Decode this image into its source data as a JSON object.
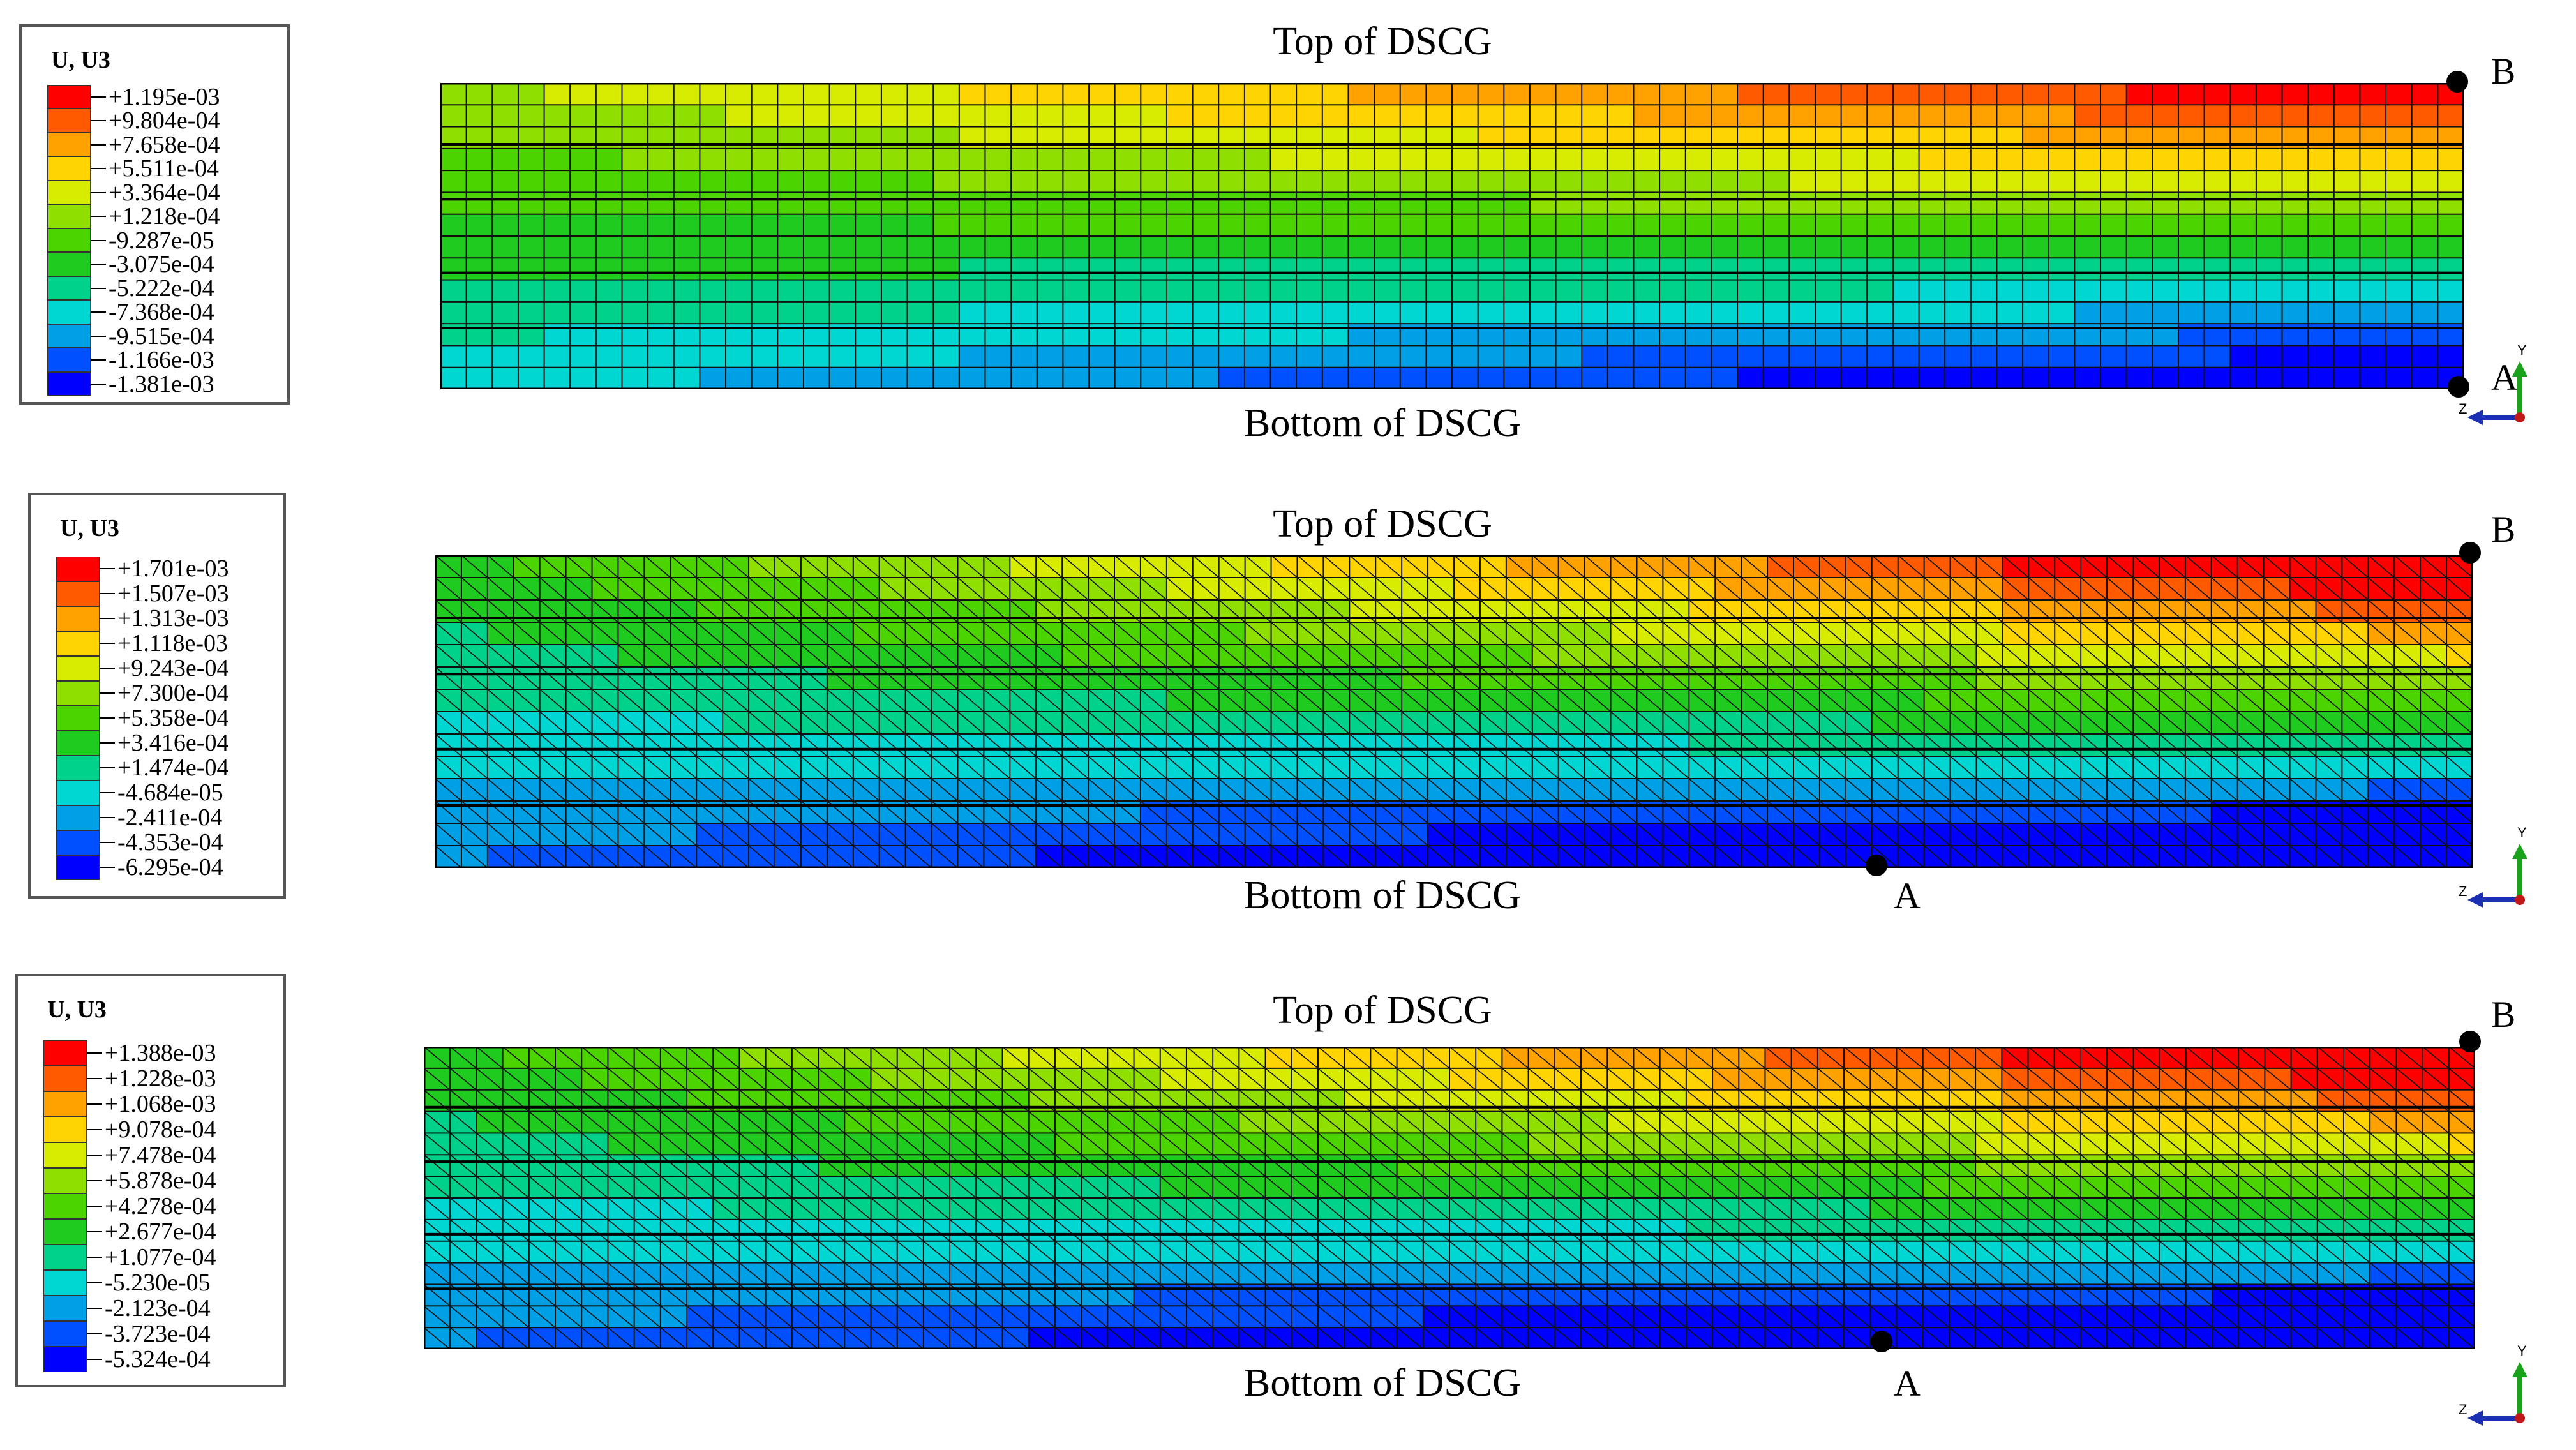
{
  "panels": [
    {
      "legend_title": "U, U3",
      "legend_values": [
        "+1.195e-03",
        "+9.804e-04",
        "+7.658e-04",
        "+5.511e-04",
        "+3.364e-04",
        "+1.218e-04",
        "-9.287e-05",
        "-3.075e-04",
        "-5.222e-04",
        "-7.368e-04",
        "-9.515e-04",
        "-1.166e-03",
        "-1.381e-03"
      ],
      "top_label": "Top of DSCG",
      "bottom_label": "Bottom of DSCG",
      "point_b": "B",
      "point_a": "A",
      "mesh": "quad"
    },
    {
      "legend_title": "U, U3",
      "legend_values": [
        "+1.701e-03",
        "+1.507e-03",
        "+1.313e-03",
        "+1.118e-03",
        "+9.243e-04",
        "+7.300e-04",
        "+5.358e-04",
        "+3.416e-04",
        "+1.474e-04",
        "-4.684e-05",
        "-2.411e-04",
        "-4.353e-04",
        "-6.295e-04"
      ],
      "top_label": "Top of DSCG",
      "bottom_label": "Bottom of DSCG",
      "point_b": "B",
      "point_a": "A",
      "mesh": "tri"
    },
    {
      "legend_title": "U, U3",
      "legend_values": [
        "+1.388e-03",
        "+1.228e-03",
        "+1.068e-03",
        "+9.078e-04",
        "+7.478e-04",
        "+5.878e-04",
        "+4.278e-04",
        "+2.677e-04",
        "+1.077e-04",
        "-5.230e-05",
        "-2.123e-04",
        "-3.723e-04",
        "-5.324e-04"
      ],
      "top_label": "Top of DSCG",
      "bottom_label": "Bottom of DSCG",
      "point_b": "B",
      "point_a": "A",
      "mesh": "tri"
    }
  ],
  "triad": {
    "y_label": "Y",
    "z_label": "Z"
  },
  "contour_colors": [
    "#ff0000",
    "#ff5a00",
    "#ffa200",
    "#ffd400",
    "#d7ec00",
    "#8fe000",
    "#4cd400",
    "#1ecb1e",
    "#00d28c",
    "#00d7d2",
    "#00a0e6",
    "#0050ff",
    "#0000ff"
  ]
}
